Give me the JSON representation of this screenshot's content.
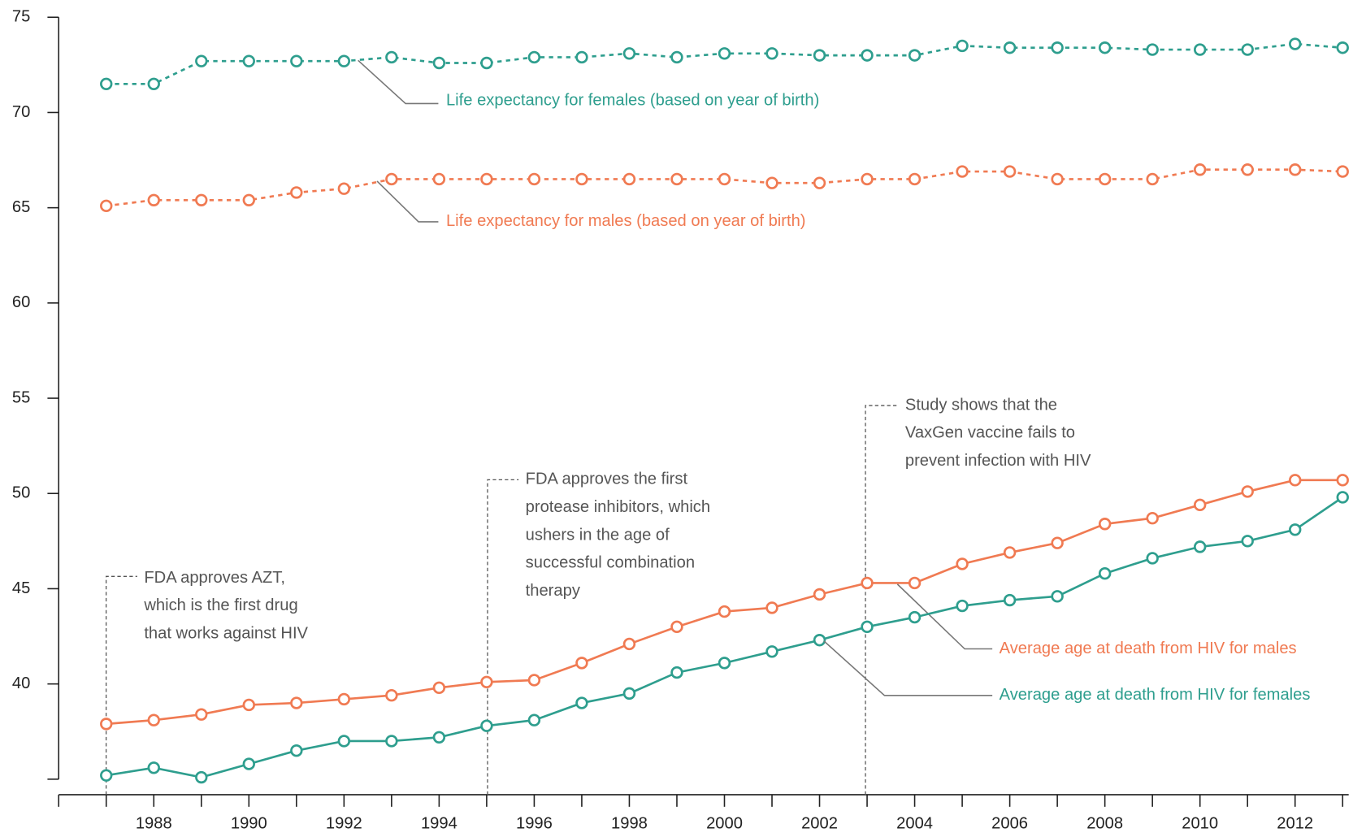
{
  "chart_data": {
    "type": "line",
    "x": [
      1987,
      1988,
      1989,
      1990,
      1991,
      1992,
      1993,
      1994,
      1995,
      1996,
      1997,
      1998,
      1999,
      2000,
      2001,
      2002,
      2003,
      2004,
      2005,
      2006,
      2007,
      2008,
      2009,
      2010,
      2011,
      2012,
      2013
    ],
    "series": [
      {
        "name": "Life expectancy for females (based on year of birth)",
        "color": "#2e9e8e",
        "dashed": true,
        "values": [
          71.5,
          71.5,
          72.7,
          72.7,
          72.7,
          72.7,
          72.9,
          72.6,
          72.6,
          72.9,
          72.9,
          73.1,
          72.9,
          73.1,
          73.1,
          73.0,
          73.0,
          73.0,
          73.5,
          73.4,
          73.4,
          73.4,
          73.3,
          73.3,
          73.3,
          73.6,
          73.4
        ]
      },
      {
        "name": "Life expectancy for males (based on year of birth)",
        "color": "#f07a52",
        "dashed": true,
        "values": [
          65.1,
          65.4,
          65.4,
          65.4,
          65.8,
          66.0,
          66.5,
          66.5,
          66.5,
          66.5,
          66.5,
          66.5,
          66.5,
          66.5,
          66.3,
          66.3,
          66.5,
          66.5,
          66.9,
          66.9,
          66.5,
          66.5,
          66.5,
          67.0,
          67.0,
          67.0,
          66.9
        ]
      },
      {
        "name": "Average age at death from HIV for males",
        "color": "#f07a52",
        "dashed": false,
        "values": [
          37.9,
          38.1,
          38.4,
          38.9,
          39.0,
          39.2,
          39.4,
          39.8,
          40.1,
          40.2,
          41.1,
          42.1,
          43.0,
          43.8,
          44.0,
          44.7,
          45.3,
          45.3,
          46.3,
          46.9,
          47.4,
          48.4,
          48.7,
          49.4,
          50.1,
          50.7,
          50.7
        ]
      },
      {
        "name": "Average age at death from HIV for females",
        "color": "#2e9e8e",
        "dashed": false,
        "values": [
          35.2,
          35.6,
          35.1,
          35.8,
          36.5,
          37.0,
          37.0,
          37.2,
          37.8,
          38.1,
          39.0,
          39.5,
          40.6,
          41.1,
          41.7,
          42.3,
          43.0,
          43.5,
          44.1,
          44.4,
          44.6,
          45.8,
          46.6,
          47.2,
          47.5,
          48.1,
          49.8
        ]
      }
    ],
    "xlim": [
      1986,
      2013
    ],
    "xticks": [
      1988,
      1990,
      1992,
      1994,
      1996,
      1998,
      2000,
      2002,
      2004,
      2006,
      2008,
      2010,
      2012
    ],
    "ylim": [
      35,
      75
    ],
    "yticks": [
      40,
      45,
      50,
      55,
      60,
      65,
      70,
      75
    ],
    "annotations": [
      {
        "lines": [
          "FDA approves AZT,",
          "which is the first drug",
          "that works against HIV"
        ]
      },
      {
        "lines": [
          "FDA approves the first",
          "protease inhibitors, which",
          "ushers in the age of",
          "successful combination",
          "therapy"
        ]
      },
      {
        "lines": [
          "Study shows that the",
          "VaxGen vaccine fails to",
          "prevent infection with HIV"
        ]
      }
    ]
  }
}
